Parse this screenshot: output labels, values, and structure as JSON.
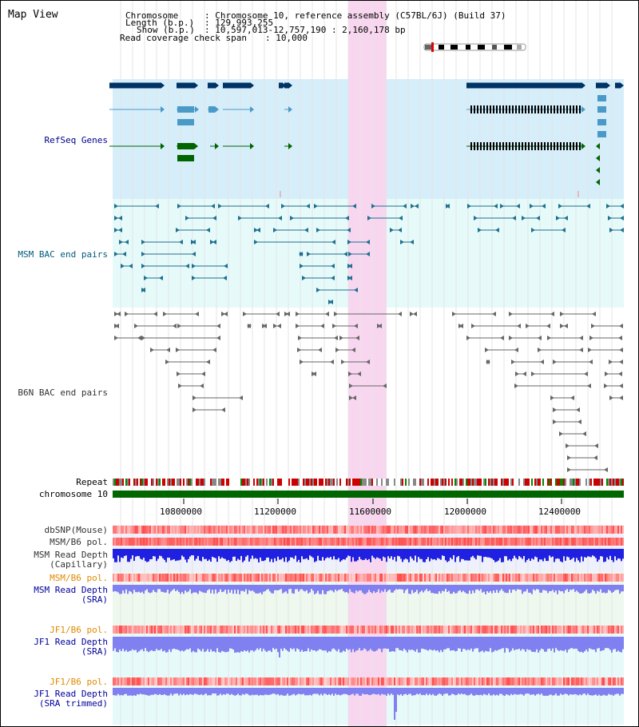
{
  "title": "Map View",
  "header": {
    "chromosome_key": "Chromosome",
    "chromosome_val": ": Chromosome 10, reference assembly (C57BL/6J) (Build 37)",
    "length_key": "Length (b.p.)",
    "length_val": ": 129,993,255",
    "show_key": "Show (b.p.)",
    "show_val": ": 10,597,013-12,757,190 : 2,160,178 bp",
    "span_key": "Read coverage check span",
    "span_val": ": 10,000"
  },
  "tracks": {
    "refseq": "RefSeq Genes",
    "msm_bac": "MSM BAC end pairs",
    "b6n_bac": "B6N BAC end pairs",
    "repeat": "Repeat",
    "chromosome": "chromosome 10",
    "dbsnp": "dbSNP(Mouse)",
    "msm_b6_pol": "MSM/B6 pol.",
    "msm_depth_cap_1": "MSM Read Depth",
    "msm_depth_cap_2": "(Capillary)",
    "msm_b6_pol2": "MSM/B6 pol.",
    "msm_depth_sra_1": "MSM Read Depth",
    "msm_depth_sra_2": "(SRA)",
    "jf1_pol": "JF1/B6 pol.",
    "jf1_depth_1": "JF1 Read Depth",
    "jf1_depth_2": "(SRA)",
    "jf1_pol2": "JF1/B6 pol.",
    "jf1_trim_1": "JF1 Read Depth",
    "jf1_trim_2": "(SRA trimmed)"
  },
  "axis": {
    "ticks": [
      "10800000",
      "11200000",
      "11600000",
      "12000000",
      "12400000"
    ]
  },
  "colors": {
    "refseq_bg": "#d6eefa",
    "msm_bg": "#e6fafa",
    "highlight": "#f9d6f0",
    "gene_dark": "#003366",
    "gene_light": "#4a9ac8",
    "gene_green": "#006400",
    "msm_bac": "#1f6f8f",
    "b6n_bac": "#666666",
    "chrom_green": "#006600",
    "depth_blue": "#2020e0",
    "depth_light": "#8080f0"
  }
}
